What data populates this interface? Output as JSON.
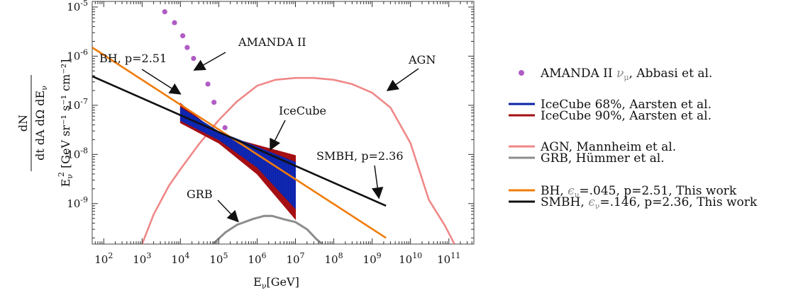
{
  "chart_data": {
    "type": "line",
    "x_scale": "log",
    "y_scale": "log",
    "xlim": [
      50,
      450000000000
    ],
    "ylim": [
      1.5e-10,
      1.3e-05
    ],
    "x_tick_exponents": [
      2,
      3,
      4,
      5,
      6,
      7,
      8,
      9,
      10,
      11
    ],
    "y_tick_exponents": [
      -9,
      -8,
      -7,
      -6,
      -5
    ],
    "tick_base": "10",
    "xlabel": {
      "main": "E",
      "sub": "ν",
      "rest": "[GeV]"
    },
    "ylabel": {
      "numerator": "dN",
      "denominator": "dt dA dΩ dE",
      "denominator_sub": "ν",
      "factor": "E",
      "factor_sub": "ν",
      "factor_sup": "2",
      "units": "[GeV sr⁻¹ s⁻¹ cm⁻²]"
    },
    "series": [
      {
        "name": "AMANDA II",
        "color": "#b05cc4",
        "style": "points",
        "points": [
          [
            3900.0,
            8e-06
          ],
          [
            7000.0,
            4.8e-06
          ],
          [
            11500.0,
            2.6e-06
          ],
          [
            15000.0,
            1.5e-06
          ],
          [
            22000.0,
            9e-07
          ],
          [
            34000.0,
            5.8e-07
          ],
          [
            52000.0,
            2.7e-07
          ],
          [
            75000.0,
            1.15e-07
          ],
          [
            145000.0,
            3.5e-08
          ]
        ]
      },
      {
        "name": "IceCube 90%",
        "color": "#a50e12",
        "style": "band",
        "upper": [
          [
            10000.0,
            1.1e-07
          ],
          [
            100000.0,
            2.5e-08
          ],
          [
            10000000.0,
            9.5e-09
          ]
        ],
        "lower": [
          [
            10000.0,
            4.4e-08
          ],
          [
            100000.0,
            1.7e-08
          ],
          [
            1000000.0,
            4e-09
          ],
          [
            10000000.0,
            4.8e-10
          ]
        ]
      },
      {
        "name": "IceCube 68%",
        "color": "#0b22a8",
        "style": "band",
        "upper": [
          [
            10000.0,
            9e-08
          ],
          [
            100000.0,
            2.9e-08
          ],
          [
            10000000.0,
            6.9e-09
          ]
        ],
        "lower": [
          [
            10000.0,
            4.9e-08
          ],
          [
            100000.0,
            2e-08
          ],
          [
            1000000.0,
            5.5e-09
          ],
          [
            10000000.0,
            7.9e-10
          ]
        ]
      },
      {
        "name": "BH",
        "color": "#f07c0c",
        "style": "line",
        "points": [
          [
            50,
            1.5e-06
          ],
          [
            2300000000.0,
            2e-10
          ]
        ]
      },
      {
        "name": "SMBH",
        "color": "#111111",
        "style": "line",
        "points": [
          [
            50,
            3.9e-07
          ],
          [
            2300000000.0,
            9e-10
          ]
        ]
      },
      {
        "name": "AGN",
        "color": "#ef8888",
        "style": "line",
        "points": [
          [
            1000.0,
            1.5e-10
          ],
          [
            2000.0,
            6e-10
          ],
          [
            5000.0,
            2.3e-09
          ],
          [
            10000.0,
            5e-09
          ],
          [
            30000.0,
            1.6e-08
          ],
          [
            100000.0,
            5e-08
          ],
          [
            300000.0,
            1.2e-07
          ],
          [
            1000000.0,
            2.5e-07
          ],
          [
            3000000.0,
            3.3e-07
          ],
          [
            10000000.0,
            3.6e-07
          ],
          [
            30000000.0,
            3.6e-07
          ],
          [
            100000000.0,
            3.3e-07
          ],
          [
            300000000.0,
            2.7e-07
          ],
          [
            1000000000.0,
            1.8e-07
          ],
          [
            3000000000.0,
            9e-08
          ],
          [
            10000000000.0,
            1.7e-08
          ],
          [
            30000000000.0,
            1.2e-09
          ],
          [
            80000000000.0,
            3.5e-10
          ],
          [
            140000000000.0,
            1.5e-10
          ]
        ]
      },
      {
        "name": "GRB",
        "color": "#8c8c8c",
        "style": "line",
        "points": [
          [
            70000.0,
            1.5e-10
          ],
          [
            150000.0,
            2.6e-10
          ],
          [
            300000.0,
            3.7e-10
          ],
          [
            800000.0,
            4.9e-10
          ],
          [
            1500000.0,
            5.6e-10
          ],
          [
            2500000.0,
            5.6e-10
          ],
          [
            5000000.0,
            4.8e-10
          ],
          [
            10000000.0,
            4.2e-10
          ],
          [
            20000000.0,
            3e-10
          ],
          [
            35000000.0,
            1.9e-10
          ],
          [
            50000000.0,
            1.5e-10
          ]
        ]
      }
    ],
    "annotations": [
      {
        "text": "AMANDA II",
        "arrow_to": [
          23000.0,
          5.2e-07
        ]
      },
      {
        "text": "BH, p=2.51",
        "arrow_to": [
          10000.0,
          1.7e-07
        ]
      },
      {
        "text": "IceCube",
        "arrow_to": [
          2200000.0,
          1.25e-08
        ]
      },
      {
        "text": "AGN",
        "arrow_to": [
          2500000000.0,
          2e-07
        ]
      },
      {
        "text": "SMBH, p=2.36",
        "arrow_to": [
          1500000000.0,
          1.3e-09
        ]
      },
      {
        "text": "GRB",
        "arrow_to": [
          320000.0,
          4.3e-10
        ]
      }
    ],
    "legend": {
      "position": "right",
      "entries": [
        {
          "series": "AMANDA II",
          "parts": [
            "AMANDA II ",
            "ν",
            "μ",
            ", Abbasi et al."
          ],
          "color": "#b05cc4",
          "marker": "dot"
        },
        {
          "series": "IceCube 68%",
          "parts": [
            "IceCube 68%, Aarsten et al."
          ],
          "color": "#0b22a8",
          "marker": "line"
        },
        {
          "series": "IceCube 90%",
          "parts": [
            "IceCube 90%, Aarsten et al."
          ],
          "color": "#a50e12",
          "marker": "line"
        },
        {
          "series": "AGN",
          "parts": [
            "AGN, Mannheim et al."
          ],
          "color": "#ef8888",
          "marker": "line"
        },
        {
          "series": "GRB",
          "parts": [
            "GRB, Hümmer et al."
          ],
          "color": "#8c8c8c",
          "marker": "line"
        },
        {
          "series": "BH",
          "parts": [
            "BH, ",
            "ϵ",
            "ν",
            "=.045,  p=2.51, This work"
          ],
          "color": "#f07c0c",
          "marker": "line"
        },
        {
          "series": "SMBH",
          "parts": [
            "SMBH, ",
            "ϵ",
            "ν",
            "=.146, p=2.36, This work"
          ],
          "color": "#111111",
          "marker": "line"
        }
      ]
    }
  }
}
